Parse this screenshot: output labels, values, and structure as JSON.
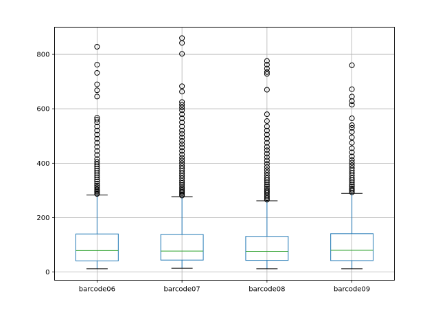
{
  "chart_data": {
    "type": "box",
    "title": "",
    "xlabel": "",
    "ylabel": "",
    "ylim": [
      -30,
      900
    ],
    "yticks": [
      0,
      200,
      400,
      600,
      800
    ],
    "grid": true,
    "categories": [
      "barcode06",
      "barcode07",
      "barcode08",
      "barcode09"
    ],
    "boxes": [
      {
        "name": "barcode06",
        "whisker_low": 12,
        "q1": 41,
        "median": 79,
        "q3": 140,
        "whisker_high": 283,
        "outliers": [
          287,
          291,
          296,
          300,
          305,
          312,
          318,
          325,
          333,
          340,
          348,
          356,
          364,
          372,
          380,
          388,
          396,
          405,
          415,
          430,
          445,
          460,
          475,
          490,
          505,
          520,
          535,
          550,
          560,
          567,
          645,
          668,
          690,
          732,
          762,
          828
        ]
      },
      {
        "name": "barcode07",
        "whisker_low": 14,
        "q1": 44,
        "median": 77,
        "q3": 138,
        "whisker_high": 277,
        "outliers": [
          281,
          285,
          290,
          295,
          300,
          306,
          312,
          320,
          328,
          336,
          345,
          354,
          363,
          372,
          381,
          390,
          400,
          410,
          420,
          432,
          445,
          458,
          470,
          482,
          495,
          508,
          520,
          535,
          550,
          565,
          580,
          595,
          605,
          615,
          625,
          663,
          683,
          802,
          842,
          860
        ]
      },
      {
        "name": "barcode08",
        "whisker_low": 12,
        "q1": 43,
        "median": 76,
        "q3": 131,
        "whisker_high": 262,
        "outliers": [
          266,
          272,
          278,
          284,
          290,
          296,
          302,
          308,
          315,
          322,
          330,
          338,
          346,
          355,
          365,
          375,
          386,
          398,
          410,
          422,
          435,
          448,
          460,
          475,
          490,
          505,
          520,
          535,
          555,
          580,
          670,
          728,
          735,
          748,
          762,
          776
        ]
      },
      {
        "name": "barcode09",
        "whisker_low": 12,
        "q1": 42,
        "median": 80,
        "q3": 141,
        "whisker_high": 289,
        "outliers": [
          293,
          298,
          303,
          308,
          315,
          322,
          330,
          338,
          346,
          355,
          364,
          373,
          382,
          392,
          402,
          412,
          425,
          440,
          455,
          475,
          495,
          515,
          530,
          540,
          565,
          615,
          628,
          645,
          672,
          760
        ]
      }
    ]
  }
}
